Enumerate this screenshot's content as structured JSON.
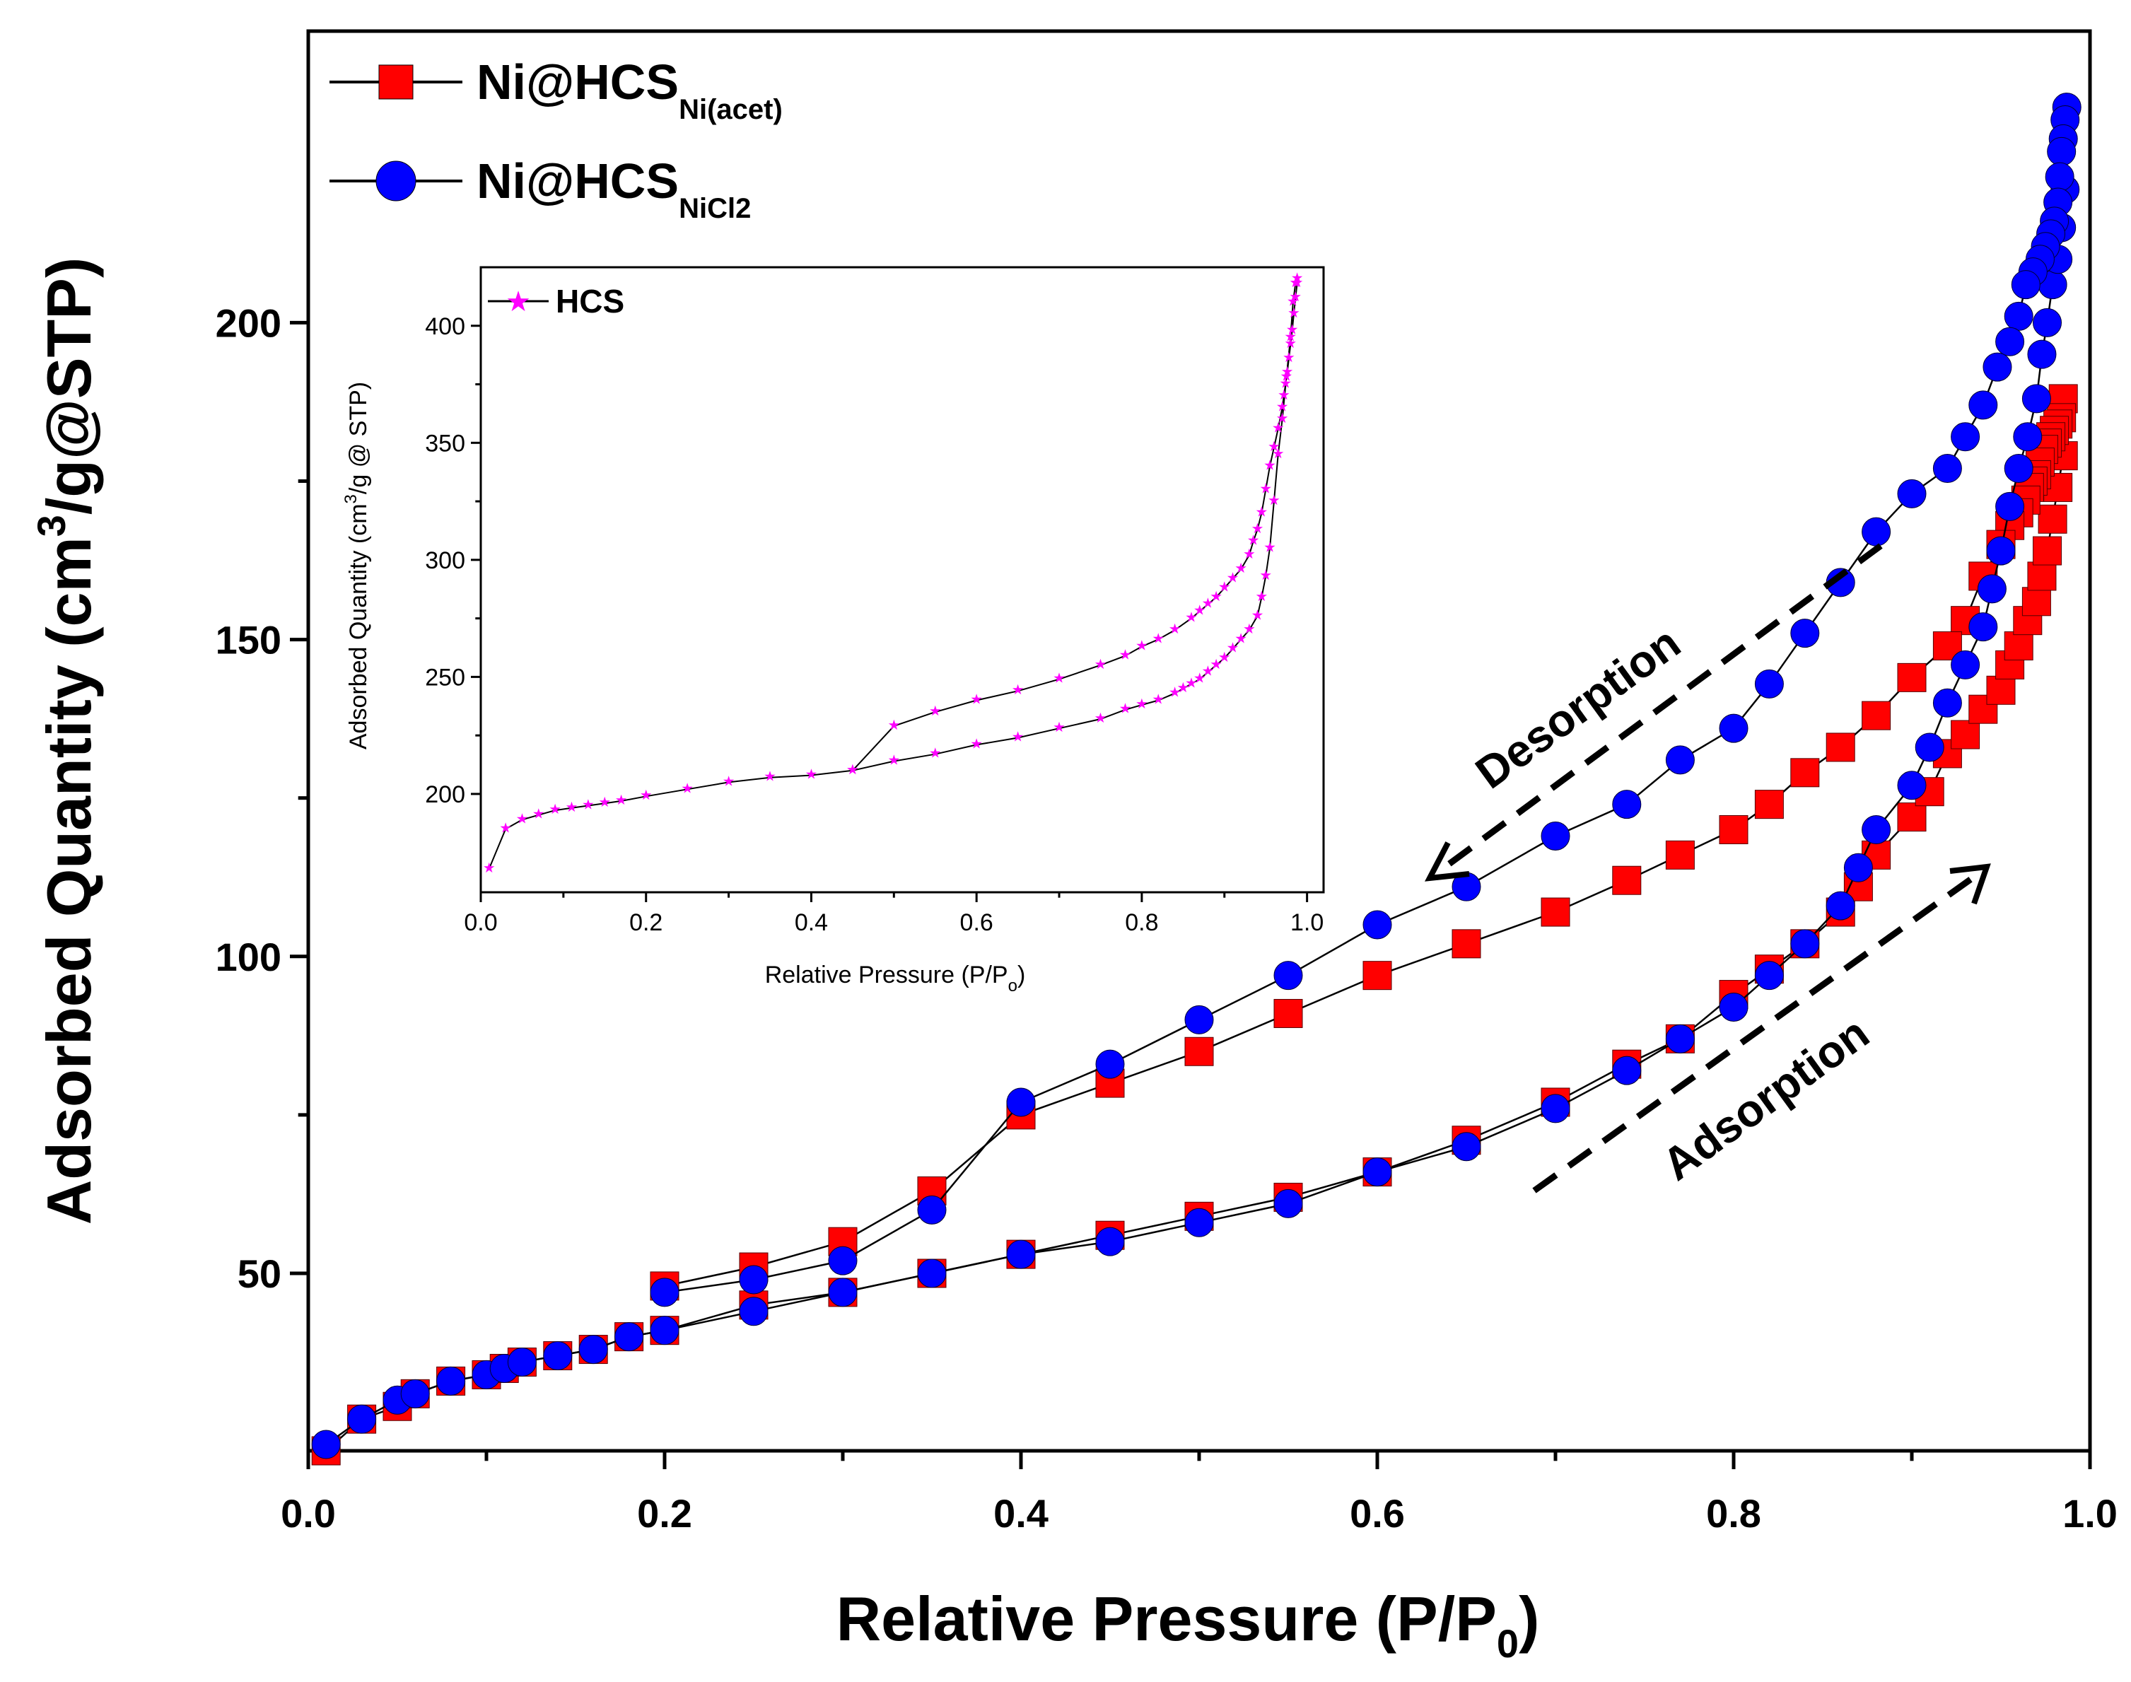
{
  "chart_data": [
    {
      "type": "line",
      "role": "main",
      "xlabel_main": "Relative Pressure (P/P",
      "xlabel_sub": "0",
      "xlabel_tail": ")",
      "ylabel_pre": "Adsorbed Quantity (cm",
      "ylabel_sup": "3",
      "ylabel_post": "/g@STP)",
      "xlim": [
        0.0,
        1.0
      ],
      "ylim": [
        22,
        246
      ],
      "xticks": [
        "0.0",
        "0.2",
        "0.4",
        "0.6",
        "0.8",
        "1.0"
      ],
      "xtick_values": [
        0.0,
        0.2,
        0.4,
        0.6,
        0.8,
        1.0
      ],
      "yticks": [
        "50",
        "100",
        "150",
        "200"
      ],
      "ytick_values": [
        50,
        100,
        150,
        200
      ],
      "legend_position": "top-left",
      "series": [
        {
          "name": "Ni@HCS",
          "name_sub": "Ni(acet)",
          "marker": "square",
          "color": "#ff0000",
          "adsorption": {
            "x": [
              0.01,
              0.03,
              0.05,
              0.06,
              0.08,
              0.1,
              0.11,
              0.12,
              0.14,
              0.16,
              0.18,
              0.2,
              0.25,
              0.3,
              0.35,
              0.4,
              0.45,
              0.5,
              0.55,
              0.6,
              0.65,
              0.7,
              0.74,
              0.77,
              0.8,
              0.82,
              0.84,
              0.86,
              0.87,
              0.88,
              0.9,
              0.91,
              0.92,
              0.93,
              0.94,
              0.95,
              0.955,
              0.96,
              0.965,
              0.97,
              0.973,
              0.976,
              0.979,
              0.982,
              0.985
            ],
            "y": [
              22,
              27,
              29,
              31,
              33,
              34,
              35,
              36,
              37,
              38,
              40,
              41,
              45,
              47,
              50,
              53,
              56,
              59,
              62,
              66,
              71,
              77,
              83,
              87,
              94,
              98,
              102,
              107,
              111,
              116,
              122,
              126,
              132,
              135,
              139,
              142,
              146,
              149,
              153,
              156,
              160,
              164,
              169,
              174,
              179
            ]
          },
          "desorption": {
            "x": [
              0.985,
              0.984,
              0.982,
              0.98,
              0.978,
              0.976,
              0.974,
              0.972,
              0.97,
              0.968,
              0.966,
              0.964,
              0.96,
              0.955,
              0.95,
              0.94,
              0.93,
              0.92,
              0.9,
              0.88,
              0.86,
              0.84,
              0.82,
              0.8,
              0.77,
              0.74,
              0.7,
              0.65,
              0.6,
              0.55,
              0.5,
              0.45,
              0.4,
              0.35,
              0.3,
              0.25,
              0.2
            ],
            "y": [
              188,
              185,
              184,
              183,
              182,
              181,
              180,
              178,
              176,
              175,
              174,
              172,
              170,
              168,
              165,
              160,
              153,
              149,
              144,
              138,
              133,
              129,
              124,
              120,
              116,
              112,
              107,
              102,
              97,
              91,
              85,
              80,
              75,
              63,
              55,
              51,
              48
            ]
          }
        },
        {
          "name": "Ni@HCS",
          "name_sub": "NiCl2",
          "marker": "circle",
          "color": "#0000ff",
          "adsorption": {
            "x": [
              0.01,
              0.03,
              0.05,
              0.06,
              0.08,
              0.1,
              0.11,
              0.12,
              0.14,
              0.16,
              0.18,
              0.2,
              0.25,
              0.3,
              0.35,
              0.4,
              0.45,
              0.5,
              0.55,
              0.6,
              0.65,
              0.7,
              0.74,
              0.77,
              0.8,
              0.82,
              0.84,
              0.86,
              0.87,
              0.88,
              0.9,
              0.91,
              0.92,
              0.93,
              0.94,
              0.945,
              0.95,
              0.955,
              0.96,
              0.965,
              0.97,
              0.973,
              0.976,
              0.979,
              0.982,
              0.984,
              0.986
            ],
            "y": [
              23,
              27,
              30,
              31,
              33,
              34,
              35,
              36,
              37,
              38,
              40,
              41,
              44,
              47,
              50,
              53,
              55,
              58,
              61,
              66,
              70,
              76,
              82,
              87,
              92,
              97,
              102,
              108,
              114,
              120,
              127,
              133,
              140,
              146,
              152,
              158,
              164,
              171,
              177,
              182,
              188,
              195,
              200,
              206,
              210,
              215,
              221
            ]
          },
          "desorption": {
            "x": [
              0.987,
              0.986,
              0.985,
              0.984,
              0.983,
              0.982,
              0.98,
              0.978,
              0.975,
              0.972,
              0.968,
              0.964,
              0.96,
              0.955,
              0.948,
              0.94,
              0.93,
              0.92,
              0.9,
              0.88,
              0.86,
              0.84,
              0.82,
              0.8,
              0.77,
              0.74,
              0.7,
              0.65,
              0.6,
              0.55,
              0.5,
              0.45,
              0.4,
              0.35,
              0.3,
              0.25,
              0.2
            ],
            "y": [
              234,
              232,
              229,
              227,
              223,
              219,
              216,
              214,
              212,
              210,
              208,
              206,
              201,
              197,
              193,
              187,
              182,
              177,
              173,
              167,
              159,
              151,
              143,
              136,
              131,
              124,
              119,
              111,
              105,
              97,
              90,
              83,
              77,
              60,
              52,
              49,
              47
            ]
          }
        }
      ],
      "annotations": [
        {
          "text": "Desorption",
          "direction": "toward lower P/P0"
        },
        {
          "text": "Adsorption",
          "direction": "toward higher P/P0"
        }
      ]
    },
    {
      "type": "line",
      "role": "inset",
      "xlabel_main": "Relative Pressure (P/P",
      "xlabel_sub": "o",
      "xlabel_tail": ")",
      "ylabel_pre": "Adsorbed Quantity (cm",
      "ylabel_sup": "3",
      "ylabel_post": "/g @ STP)",
      "xlim": [
        0.0,
        1.02
      ],
      "ylim": [
        158,
        425
      ],
      "xticks": [
        "0.0",
        "0.2",
        "0.4",
        "0.6",
        "0.8",
        "1.0"
      ],
      "xtick_values": [
        0.0,
        0.2,
        0.4,
        0.6,
        0.8,
        1.0
      ],
      "yticks": [
        "200",
        "250",
        "300",
        "350",
        "400"
      ],
      "ytick_values": [
        200,
        250,
        300,
        350,
        400
      ],
      "legend_position": "top-left",
      "series": [
        {
          "name": "HCS",
          "marker": "star",
          "color": "#ff00ff",
          "adsorption": {
            "x": [
              0.01,
              0.03,
              0.05,
              0.07,
              0.09,
              0.11,
              0.13,
              0.15,
              0.17,
              0.2,
              0.25,
              0.3,
              0.35,
              0.4,
              0.45,
              0.5,
              0.55,
              0.6,
              0.65,
              0.7,
              0.75,
              0.78,
              0.8,
              0.82,
              0.84,
              0.85,
              0.86,
              0.87,
              0.88,
              0.89,
              0.9,
              0.91,
              0.92,
              0.93,
              0.94,
              0.945,
              0.95,
              0.955,
              0.96,
              0.965,
              0.97,
              0.975,
              0.98,
              0.983,
              0.986,
              0.988
            ],
            "y": [
              168,
              185,
              189,
              191,
              193,
              194,
              195,
              196,
              197,
              199,
              202,
              205,
              207,
              208,
              210,
              214,
              217,
              221,
              224,
              228,
              232,
              236,
              238,
              240,
              243,
              245,
              247,
              249,
              252,
              255,
              258,
              262,
              266,
              270,
              276,
              284,
              293,
              305,
              325,
              345,
              360,
              378,
              395,
              410,
              418,
              420
            ]
          },
          "desorption": {
            "x": [
              0.988,
              0.986,
              0.984,
              0.982,
              0.98,
              0.978,
              0.976,
              0.974,
              0.972,
              0.97,
              0.965,
              0.96,
              0.955,
              0.95,
              0.945,
              0.94,
              0.935,
              0.93,
              0.92,
              0.91,
              0.9,
              0.89,
              0.88,
              0.87,
              0.86,
              0.84,
              0.82,
              0.8,
              0.78,
              0.75,
              0.7,
              0.65,
              0.6,
              0.55,
              0.5,
              0.45
            ],
            "y": [
              418,
              412,
              405,
              398,
              392,
              386,
              380,
              375,
              370,
              365,
              356,
              348,
              340,
              330,
              320,
              313,
              308,
              302,
              296,
              292,
              288,
              284,
              281,
              278,
              275,
              270,
              266,
              263,
              259,
              255,
              249,
              244,
              240,
              235,
              229,
              210
            ]
          }
        }
      ]
    }
  ]
}
